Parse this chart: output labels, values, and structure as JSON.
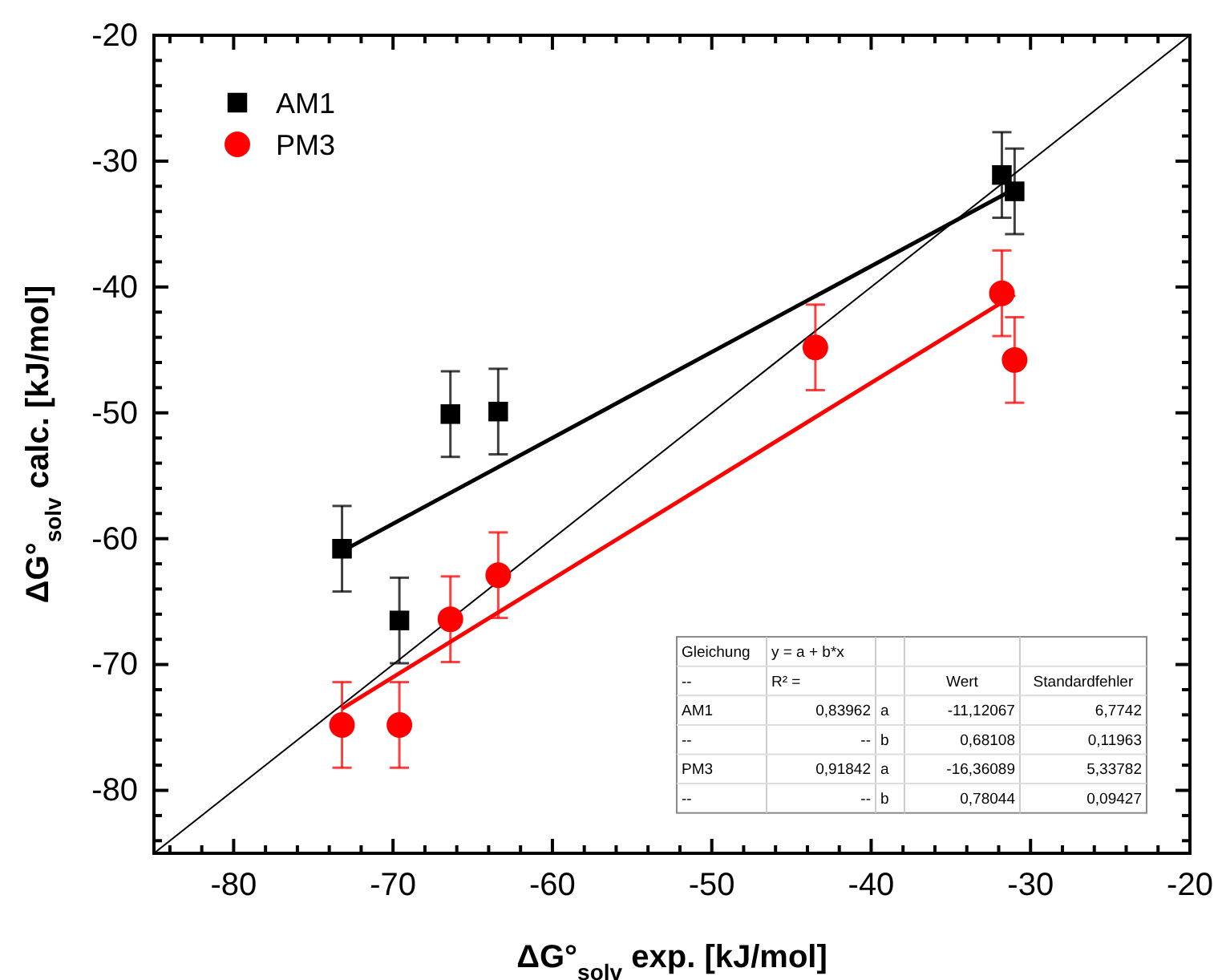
{
  "chart_data": {
    "type": "scatter",
    "xlabel": "ΔG°$_{solv}$ exp. [kJ/mol]",
    "ylabel": "ΔG°$_{solv}$ calc. [kJ/mol]",
    "xlim": [
      -85,
      -20
    ],
    "ylim": [
      -85,
      -20
    ],
    "xticks": [
      {
        "value": -84,
        "label": null
      },
      {
        "value": -82,
        "label": null
      },
      -80,
      {
        "value": -78,
        "label": null
      },
      {
        "value": -76,
        "label": null
      },
      {
        "value": -74,
        "label": null
      },
      {
        "value": -72,
        "label": null
      },
      -70,
      {
        "value": -68,
        "label": null
      },
      {
        "value": -66,
        "label": null
      },
      {
        "value": -64,
        "label": null
      },
      {
        "value": -62,
        "label": null
      },
      -60,
      {
        "value": -58,
        "label": null
      },
      {
        "value": -56,
        "label": null
      },
      {
        "value": -54,
        "label": null
      },
      {
        "value": -52,
        "label": null
      },
      -50,
      {
        "value": -48,
        "label": null
      },
      {
        "value": -46,
        "label": null
      },
      {
        "value": -44,
        "label": null
      },
      {
        "value": -42,
        "label": null
      },
      -40,
      {
        "value": -38,
        "label": null
      },
      {
        "value": -36,
        "label": null
      },
      {
        "value": -34,
        "label": null
      },
      {
        "value": -32,
        "label": null
      },
      -30,
      {
        "value": -28,
        "label": null
      },
      {
        "value": -26,
        "label": null
      },
      {
        "value": -24,
        "label": null
      },
      {
        "value": -22,
        "label": null
      },
      -20
    ],
    "yticks": [
      {
        "value": -84,
        "label": null
      },
      {
        "value": -82,
        "label": null
      },
      -80,
      {
        "value": -78,
        "label": null
      },
      {
        "value": -76,
        "label": null
      },
      {
        "value": -74,
        "label": null
      },
      {
        "value": -72,
        "label": null
      },
      -70,
      {
        "value": -68,
        "label": null
      },
      {
        "value": -66,
        "label": null
      },
      {
        "value": -64,
        "label": null
      },
      {
        "value": -62,
        "label": null
      },
      -60,
      {
        "value": -58,
        "label": null
      },
      {
        "value": -56,
        "label": null
      },
      {
        "value": -54,
        "label": null
      },
      {
        "value": -52,
        "label": null
      },
      -50,
      {
        "value": -48,
        "label": null
      },
      {
        "value": -46,
        "label": null
      },
      {
        "value": -44,
        "label": null
      },
      {
        "value": -42,
        "label": null
      },
      -40,
      {
        "value": -38,
        "label": null
      },
      {
        "value": -36,
        "label": null
      },
      {
        "value": -34,
        "label": null
      },
      {
        "value": -32,
        "label": null
      },
      -30,
      {
        "value": -28,
        "label": null
      },
      {
        "value": -26,
        "label": null
      },
      {
        "value": -24,
        "label": null
      },
      {
        "value": -22,
        "label": null
      },
      -20
    ],
    "grid": false,
    "legend": "top left",
    "series": [
      {
        "name": "AM1",
        "marker": "square",
        "color": "#000000",
        "x": [
          -73.2,
          -69.6,
          -66.4,
          -63.4,
          -31.8,
          -31.0
        ],
        "values": [
          -60.8,
          -66.5,
          -50.1,
          -49.9,
          -31.1,
          -32.4
        ],
        "errors": [
          3.4,
          3.4,
          3.4,
          3.4,
          3.4,
          3.4
        ]
      },
      {
        "name": "PM3",
        "marker": "circle",
        "color": "#ff0000",
        "x": [
          -73.2,
          -69.6,
          -66.4,
          -63.4,
          -43.5,
          -31.8,
          -31.0
        ],
        "values": [
          -74.8,
          -74.8,
          -66.4,
          -62.9,
          -44.8,
          -40.5,
          -45.8
        ],
        "errors": [
          3.4,
          3.4,
          3.4,
          3.4,
          3.4,
          3.4,
          3.4
        ]
      },
      {
        "type": "line",
        "color": "#000000",
        "x": [
          -73.2,
          -31.0
        ],
        "values": [
          -61.0,
          -32.2
        ]
      },
      {
        "type": "line",
        "color": "#ff0000",
        "x": [
          -73.2,
          -31.0
        ],
        "values": [
          -73.5,
          -40.6
        ]
      },
      {
        "type": "line",
        "color": "#000000",
        "x": [
          -85,
          -20
        ],
        "values": [
          -85,
          -20
        ]
      }
    ],
    "annotations": [
      "Gleichung",
      "y = a + b*x",
      null,
      null,
      null,
      "--",
      "R² =",
      null,
      "Wert",
      "Standardfehler",
      "AM1",
      "0,83962",
      "a",
      "-11,12067",
      "6,7742",
      "--",
      "--",
      "b",
      "0,68108",
      "0,11963",
      "PM3",
      "0,91842",
      "a",
      "-16,36089",
      "5,33782",
      "--",
      "--",
      "b",
      "0,78044",
      "0,09427"
    ]
  }
}
